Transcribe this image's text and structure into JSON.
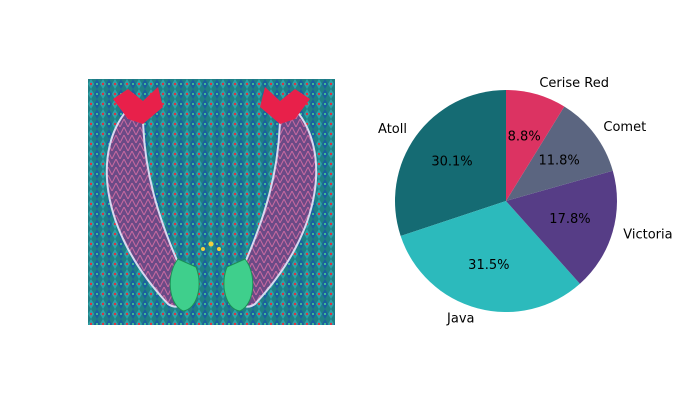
{
  "image": {
    "icon": "embroidered-textile-photo",
    "description_colors": {
      "background": "#1f7f86",
      "fish_body": "#6b4a86",
      "tail": "#e8204a",
      "frog": "#3fcf8c"
    }
  },
  "chart_data": {
    "type": "pie",
    "title": "",
    "start_angle_deg": 90,
    "direction": "counterclockwise",
    "slices": [
      {
        "label": "Atoll",
        "value": 30.1,
        "pct_text": "30.1%",
        "color": "#156b73"
      },
      {
        "label": "Java",
        "value": 31.5,
        "pct_text": "31.5%",
        "color": "#2cbabc"
      },
      {
        "label": "Victoria",
        "value": 17.8,
        "pct_text": "17.8%",
        "color": "#563d86"
      },
      {
        "label": "Comet",
        "value": 11.8,
        "pct_text": "11.8%",
        "color": "#5b6580"
      },
      {
        "label": "Cerise Red",
        "value": 8.8,
        "pct_text": "8.8%",
        "color": "#dc3362"
      }
    ]
  }
}
